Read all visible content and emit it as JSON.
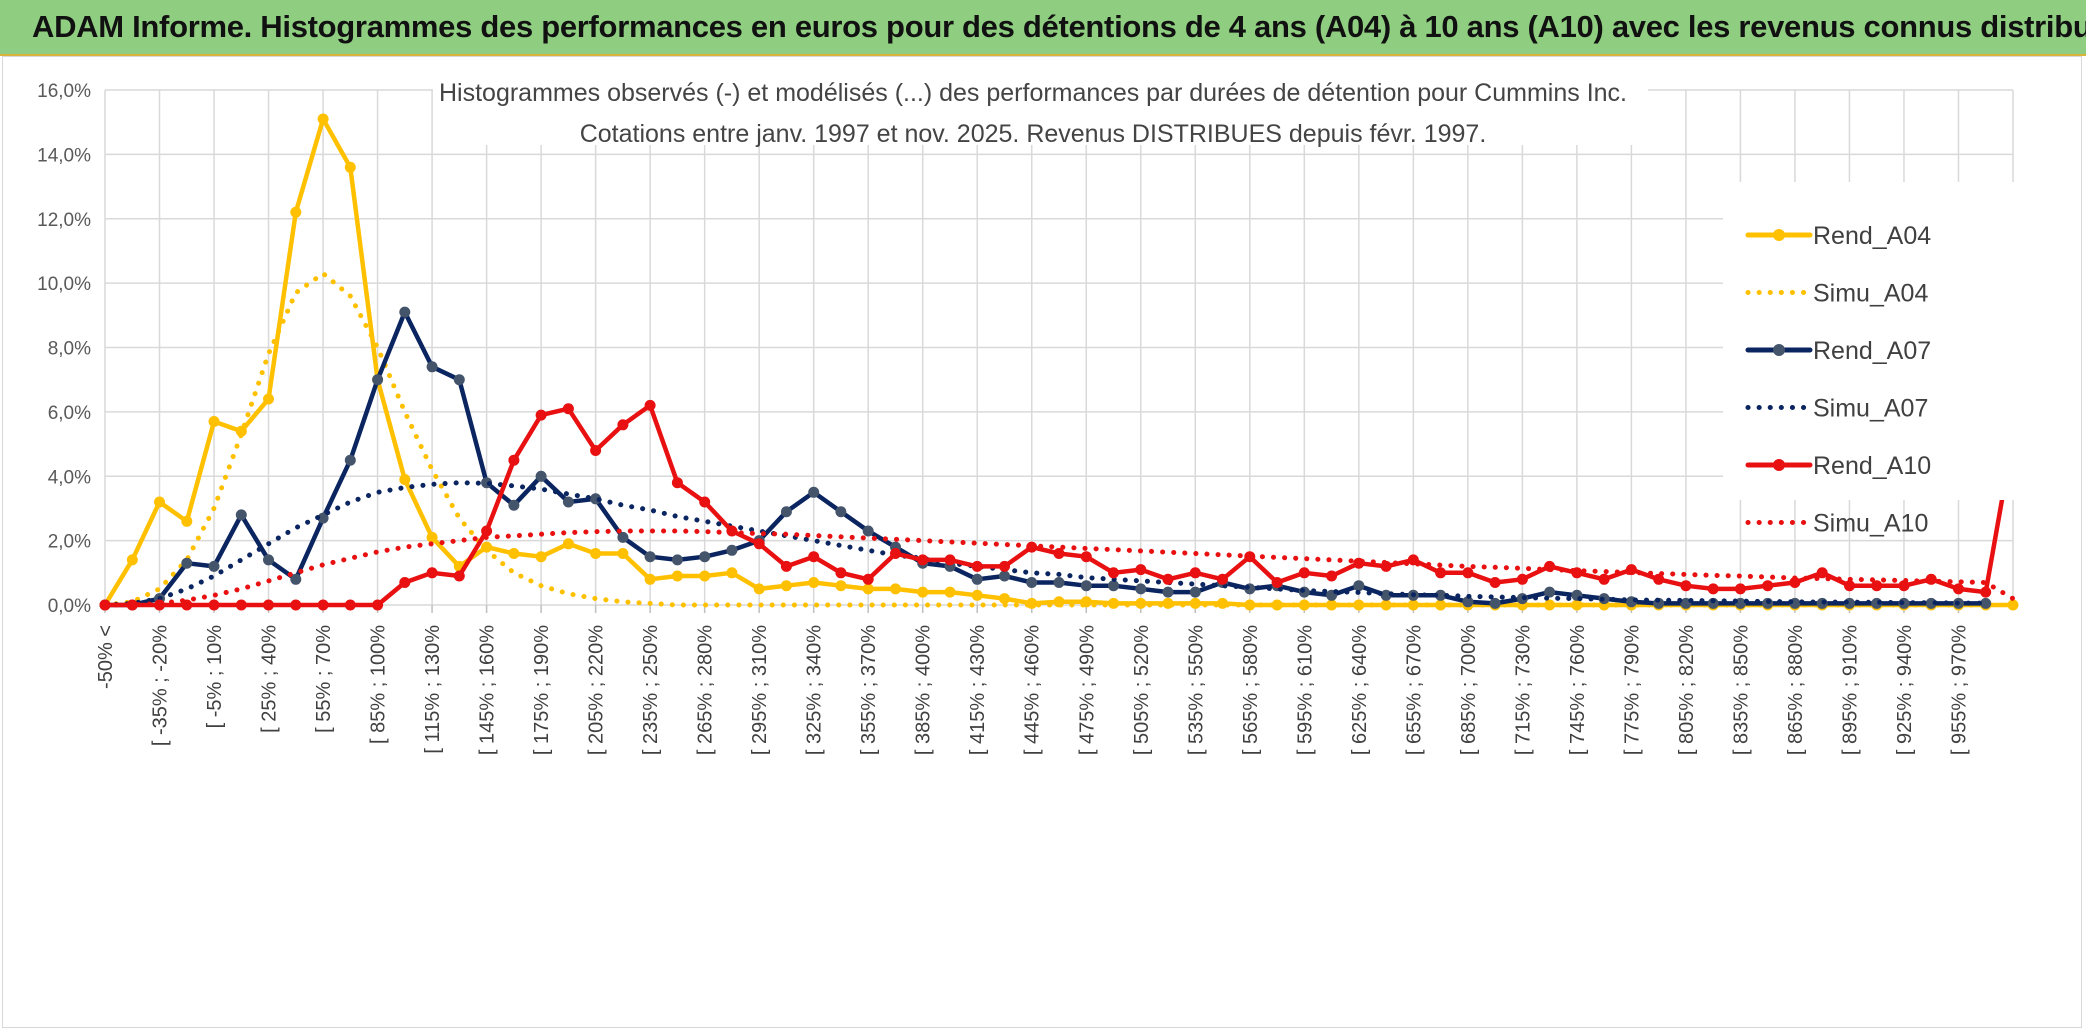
{
  "banner": {
    "title": "ADAM Informe. Histogrammes des performances en euros pour des détentions de 4 ans (A04) à 10 ans (A10) avec les revenus connus distribués"
  },
  "chart_data": {
    "type": "line",
    "title": "Histogrammes observés (-) et modélisés (...) des performances par durées de détention pour Cummins Inc.",
    "subtitle": "Cotations entre janv. 1997 et nov. 2025. Revenus DISTRIBUES depuis févr. 1997.",
    "xlabel": "",
    "ylabel": "",
    "ylim": [
      0,
      16
    ],
    "y_ticks": [
      "0,0%",
      "2,0%",
      "4,0%",
      "6,0%",
      "8,0%",
      "10,0%",
      "12,0%",
      "14,0%",
      "16,0%"
    ],
    "grid": true,
    "legend_position": "top-right",
    "x_tick_labels": [
      "-50% <",
      "[ -35% ; -20%",
      "[ -5% ; 10%",
      "[ 25% ; 40%",
      "[ 55% ; 70%",
      "[ 85% ; 100%",
      "[ 115% ; 130%",
      "[ 145% ; 160%",
      "[ 175% ; 190%",
      "[ 205% ; 220%",
      "[ 235% ; 250%",
      "[ 265% ; 280%",
      "[ 295% ; 310%",
      "[ 325% ; 340%",
      "[ 355% ; 370%",
      "[ 385% ; 400%",
      "[ 415% ; 430%",
      "[ 445% ; 460%",
      "[ 475% ; 490%",
      "[ 505% ; 520%",
      "[ 535% ; 550%",
      "[ 565% ; 580%",
      "[ 595% ; 610%",
      "[ 625% ; 640%",
      "[ 655% ; 670%",
      "[ 685% ; 700%",
      "[ 715% ; 730%",
      "[ 745% ; 760%",
      "[ 775% ; 790%",
      "[ 805% ; 820%",
      "[ 835% ; 850%",
      "[ 865% ; 880%",
      "[ 895% ; 910%",
      "[ 925% ; 940%",
      "[ 955% ; 970%"
    ],
    "series": [
      {
        "name": "Rend_A04",
        "style": "solid",
        "color": "#ffc000",
        "markers": true,
        "values": [
          0.0,
          1.4,
          3.2,
          2.6,
          5.7,
          5.4,
          6.4,
          12.2,
          15.1,
          13.6,
          7.0,
          3.9,
          2.1,
          1.2,
          1.8,
          1.6,
          1.5,
          1.9,
          1.6,
          1.6,
          0.8,
          0.9,
          0.9,
          1.0,
          0.5,
          0.6,
          0.7,
          0.6,
          0.5,
          0.5,
          0.4,
          0.4,
          0.3,
          0.2,
          0.05,
          0.1,
          0.1,
          0.05,
          0.05,
          0.05,
          0.05,
          0.05,
          0.0,
          0.0,
          0.0,
          0.0,
          0.0,
          0.0,
          0.0,
          0.0,
          0.0,
          0.0,
          0.0,
          0.0,
          0.0,
          0.0,
          0.0,
          0.0,
          0.0,
          0.0,
          0.0,
          0.0,
          0.0,
          0.0,
          0.0,
          0.0,
          0.0,
          0.0,
          0.0,
          0.0,
          0.0,
          0.0,
          0.0,
          0.0,
          0.0,
          0.0,
          0.0,
          0.0,
          0.0,
          0.0,
          0.0,
          0.0,
          0.0,
          0.0,
          0.0,
          0.0,
          0.0,
          0.0,
          0.0,
          0.0,
          0.0,
          0.0,
          0.0,
          0.0,
          0.0,
          0.0,
          0.0,
          0.0,
          0.0,
          0.0,
          0.0,
          0.0,
          0.0,
          0.0,
          0.0,
          0.0,
          0.0,
          0.0,
          0.0,
          0.0,
          0.0,
          0.0,
          0.0,
          0.0,
          0.0,
          0.0,
          0.0,
          0.0,
          0.0,
          0.0,
          0.0,
          0.0,
          0.0,
          0.0,
          0.0,
          0.0,
          0.0,
          0.0,
          0.0,
          0.0,
          0.0,
          0.0,
          0.0,
          0.0,
          0.0,
          0.0,
          0.0,
          0.0,
          0.0,
          0.0,
          0.0,
          0.0,
          0.0,
          0.0,
          0.0,
          0.0,
          0.0,
          0.0,
          0.0,
          0.0,
          0.0,
          0.0,
          0.0,
          0.0,
          0.0,
          0.0,
          0.0,
          0.0,
          0.0,
          0.0,
          0.0,
          0.0,
          0.0,
          0.0,
          0.0,
          0.0,
          0.0,
          0.0,
          0.0,
          0.0,
          0.0,
          0.0,
          0.0,
          0.0,
          0.0,
          0.0,
          0.0,
          0.0,
          0.0,
          0.0,
          0.0,
          0.0,
          0.0,
          0.0,
          0.0,
          0.0,
          0.0,
          0.0,
          0.0,
          0.0,
          0.0,
          0.0,
          0.0,
          0.0,
          0.0,
          0.0,
          0.0,
          0.0,
          0.0,
          0.0,
          0.0,
          0.0,
          0.0,
          0.0,
          0.0,
          0.0,
          0.0,
          0.0
        ]
      },
      {
        "name": "Simu_A04",
        "style": "dotted",
        "color": "#ffc000",
        "markers": false,
        "values": [
          0.0,
          0.1,
          0.5,
          1.4,
          3.0,
          5.3,
          7.8,
          9.7,
          10.3,
          9.6,
          8.0,
          6.0,
          4.2,
          2.7,
          1.7,
          1.0,
          0.6,
          0.35,
          0.2,
          0.1,
          0.05,
          0.0,
          0.0,
          0.0,
          0.0,
          0.0,
          0.0,
          0.0,
          0.0,
          0.0,
          0.0,
          0.0,
          0.0,
          0.0,
          0.0,
          0.0,
          0.0,
          0.0,
          0.0,
          0.0,
          0.0,
          0.0,
          0.0,
          0.0,
          0.0,
          0.0,
          0.0,
          0.0,
          0.0,
          0.0,
          0.0,
          0.0,
          0.0,
          0.0,
          0.0,
          0.0,
          0.0,
          0.0,
          0.0,
          0.0,
          0.0,
          0.0,
          0.0,
          0.0,
          0.0,
          0.0,
          0.0,
          0.0,
          0.0,
          0.0
        ]
      },
      {
        "name": "Rend_A07",
        "style": "solid",
        "color": "#0b2560",
        "markers": true,
        "values": [
          0.0,
          0.0,
          0.2,
          1.3,
          1.2,
          2.8,
          1.4,
          0.8,
          2.7,
          4.5,
          7.0,
          9.1,
          7.4,
          7.0,
          3.8,
          3.1,
          4.0,
          3.2,
          3.3,
          2.1,
          1.5,
          1.4,
          1.5,
          1.7,
          2.0,
          2.9,
          3.5,
          2.9,
          2.3,
          1.8,
          1.3,
          1.2,
          0.8,
          0.9,
          0.7,
          0.7,
          0.6,
          0.6,
          0.5,
          0.4,
          0.4,
          0.7,
          0.5,
          0.6,
          0.4,
          0.3,
          0.6,
          0.3,
          0.3,
          0.3,
          0.1,
          0.05,
          0.2,
          0.4,
          0.3,
          0.2,
          0.1,
          0.05,
          0.05,
          0.05,
          0.05,
          0.05,
          0.05,
          0.05,
          0.05,
          0.05,
          0.05,
          0.05,
          0.05,
          0.05
        ]
      },
      {
        "name": "Simu_A07",
        "style": "dotted",
        "color": "#0b2560",
        "markers": false,
        "values": [
          0.0,
          0.05,
          0.2,
          0.5,
          0.9,
          1.4,
          1.9,
          2.4,
          2.8,
          3.2,
          3.5,
          3.65,
          3.75,
          3.8,
          3.78,
          3.7,
          3.6,
          3.45,
          3.3,
          3.1,
          2.95,
          2.75,
          2.6,
          2.45,
          2.3,
          2.15,
          2.0,
          1.85,
          1.7,
          1.55,
          1.45,
          1.3,
          1.2,
          1.1,
          1.0,
          0.95,
          0.85,
          0.8,
          0.75,
          0.7,
          0.65,
          0.6,
          0.55,
          0.5,
          0.45,
          0.42,
          0.39,
          0.35,
          0.32,
          0.3,
          0.27,
          0.25,
          0.23,
          0.21,
          0.2,
          0.18,
          0.16,
          0.15,
          0.14,
          0.13,
          0.12,
          0.11,
          0.1,
          0.09,
          0.09,
          0.08,
          0.07,
          0.07,
          0.06,
          0.06
        ]
      },
      {
        "name": "Rend_A10",
        "style": "solid",
        "color": "#e81010",
        "markers": true,
        "values": [
          0.0,
          0.0,
          0.0,
          0.0,
          0.0,
          0.0,
          0.0,
          0.0,
          0.0,
          0.0,
          0.0,
          0.7,
          1.0,
          0.9,
          2.3,
          4.5,
          5.9,
          6.1,
          4.8,
          5.6,
          6.2,
          3.8,
          3.2,
          2.3,
          1.9,
          1.2,
          1.5,
          1.0,
          0.8,
          1.6,
          1.4,
          1.4,
          1.2,
          1.2,
          1.8,
          1.6,
          1.5,
          1.0,
          1.1,
          0.8,
          1.0,
          0.8,
          1.5,
          0.7,
          1.0,
          0.9,
          1.3,
          1.2,
          1.4,
          1.0,
          1.0,
          0.7,
          0.8,
          1.2,
          1.0,
          0.8,
          1.1,
          0.8,
          0.6,
          0.5,
          0.5,
          0.6,
          0.7,
          1.0,
          0.6,
          0.6,
          0.6,
          0.8,
          0.5,
          0.4,
          5.2
        ]
      },
      {
        "name": "Simu_A10",
        "style": "dotted",
        "color": "#e81010",
        "markers": false,
        "values": [
          0.0,
          0.0,
          0.05,
          0.15,
          0.3,
          0.5,
          0.75,
          1.0,
          1.25,
          1.45,
          1.65,
          1.8,
          1.9,
          2.0,
          2.1,
          2.15,
          2.2,
          2.25,
          2.28,
          2.3,
          2.3,
          2.3,
          2.28,
          2.25,
          2.22,
          2.2,
          2.16,
          2.12,
          2.08,
          2.04,
          2.0,
          1.96,
          1.92,
          1.88,
          1.84,
          1.8,
          1.76,
          1.72,
          1.68,
          1.64,
          1.6,
          1.56,
          1.52,
          1.48,
          1.44,
          1.4,
          1.36,
          1.32,
          1.28,
          1.24,
          1.2,
          1.17,
          1.14,
          1.1,
          1.07,
          1.04,
          1.01,
          0.98,
          0.95,
          0.92,
          0.9,
          0.87,
          0.84,
          0.82,
          0.8,
          0.78,
          0.76,
          0.74,
          0.72,
          0.7,
          0.2
        ]
      }
    ]
  }
}
